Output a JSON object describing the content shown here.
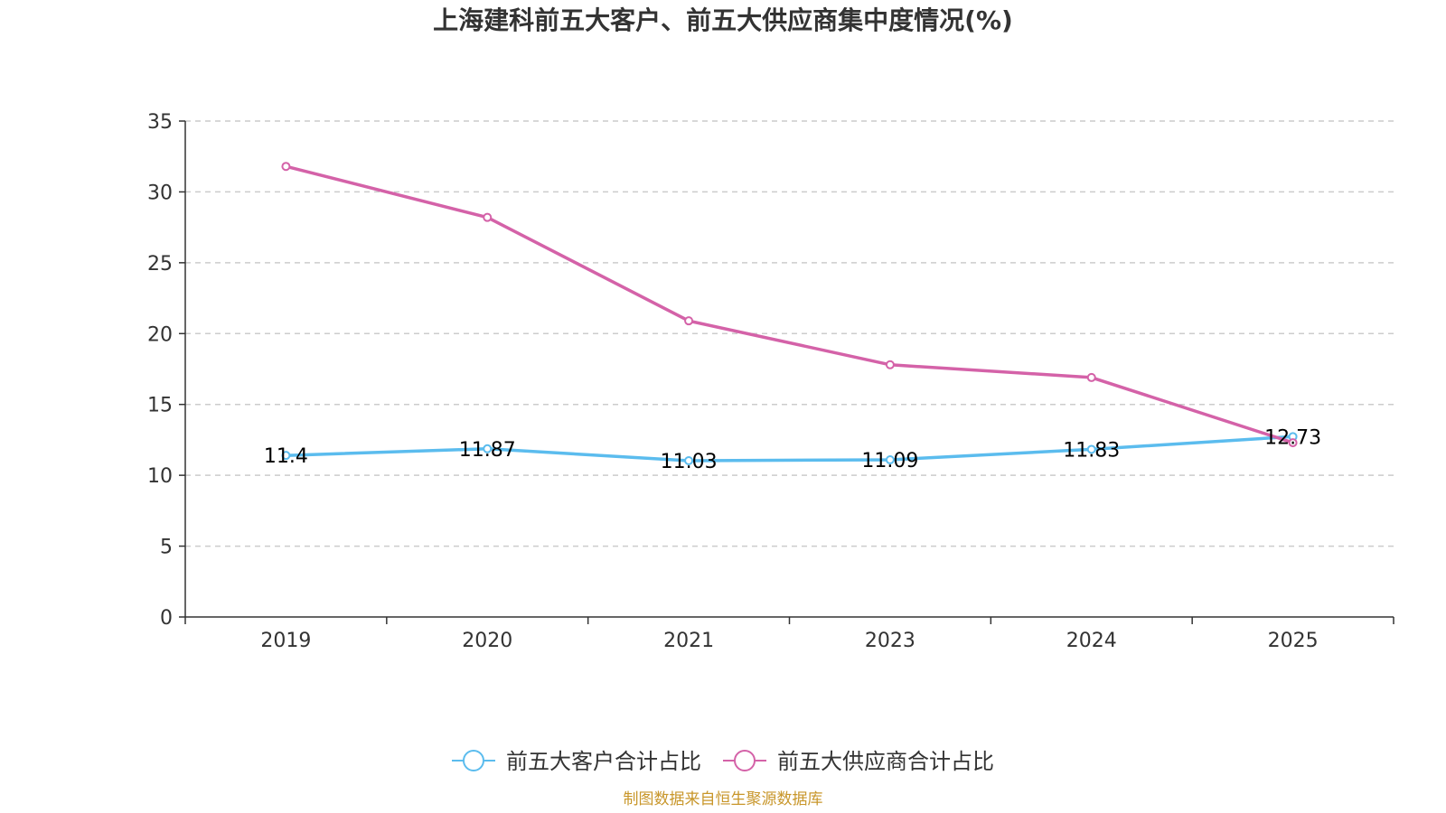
{
  "chart_data": {
    "type": "line",
    "title": "上海建科前五大客户、前五大供应商集中度情况(%)",
    "categories": [
      "2019",
      "2020",
      "2021",
      "2023",
      "2024",
      "2025"
    ],
    "ylim": [
      0,
      35
    ],
    "yticks": [
      0,
      5,
      10,
      15,
      20,
      25,
      30,
      35
    ],
    "grid": true,
    "legend_position": "bottom",
    "series": [
      {
        "name": "前五大客户合计占比",
        "values": [
          11.4,
          11.87,
          11.03,
          11.09,
          11.83,
          12.73
        ],
        "labels": [
          "11.4",
          "11.87",
          "11.03",
          "11.09",
          "11.83",
          "12.73"
        ],
        "color": "#5bbcee"
      },
      {
        "name": "前五大供应商合计占比",
        "values": [
          31.8,
          28.2,
          20.9,
          17.8,
          16.9,
          12.3
        ],
        "color": "#d462a8"
      }
    ],
    "source": "制图数据来自恒生聚源数据库"
  }
}
